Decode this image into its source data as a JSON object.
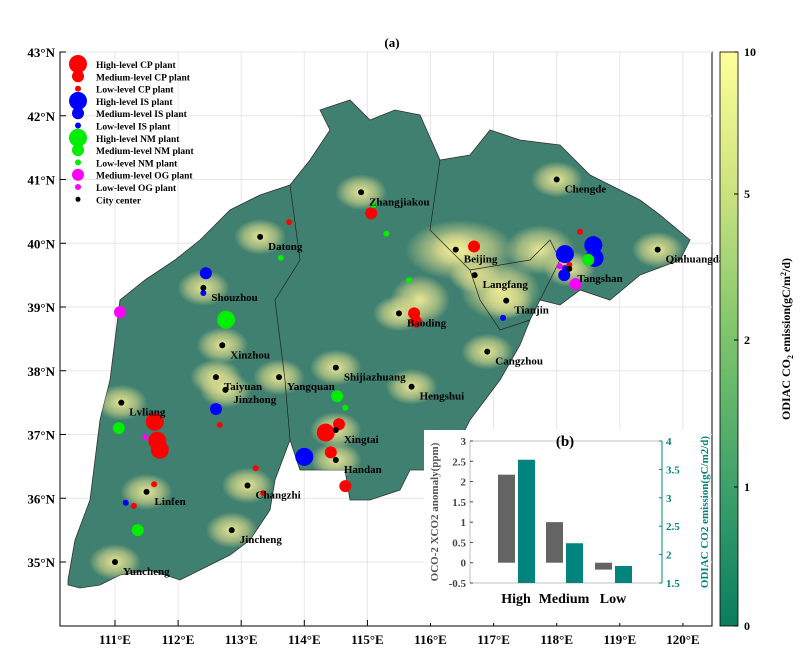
{
  "map": {
    "panel_label": "(a)",
    "lat_ticks": [
      "43°N",
      "42°N",
      "41°N",
      "40°N",
      "39°N",
      "38°N",
      "37°N",
      "36°N",
      "35°N"
    ],
    "lon_ticks": [
      "111°E",
      "112°E",
      "113°E",
      "114°E",
      "115°E",
      "116°E",
      "117°E",
      "118°E",
      "119°E",
      "120°E"
    ],
    "lat_values": [
      43,
      42,
      41,
      40,
      39,
      38,
      37,
      36,
      35
    ],
    "lon_values": [
      111,
      112,
      113,
      114,
      115,
      116,
      117,
      118,
      119,
      120
    ],
    "region_color": "#3f8070",
    "legend": [
      {
        "label": "High-level CP plant",
        "color": "#ff0000",
        "level": "high"
      },
      {
        "label": "Medium-level CP plant",
        "color": "#ff0000",
        "level": "medium"
      },
      {
        "label": "Low-level CP plant",
        "color": "#ff0000",
        "level": "low"
      },
      {
        "label": "High-level IS plant",
        "color": "#0000ff",
        "level": "high"
      },
      {
        "label": "Medium-level IS plant",
        "color": "#0000ff",
        "level": "medium"
      },
      {
        "label": "Low-level IS plant",
        "color": "#0000ff",
        "level": "low"
      },
      {
        "label": "High-level NM plant",
        "color": "#00ee00",
        "level": "high"
      },
      {
        "label": "Medium-level NM plant",
        "color": "#00ee00",
        "level": "medium"
      },
      {
        "label": "Low-level NM plant",
        "color": "#00ee00",
        "level": "low"
      },
      {
        "label": "Medium-level OG plant",
        "color": "#ff00ff",
        "level": "medium"
      },
      {
        "label": "Low-level OG plant",
        "color": "#ff00ff",
        "level": "low"
      },
      {
        "label": "City center",
        "color": "#000000",
        "level": "city"
      }
    ],
    "cities": [
      {
        "name": "Zhangjiakou",
        "lon": 114.9,
        "lat": 40.8
      },
      {
        "name": "Chengde",
        "lon": 118.0,
        "lat": 41.0
      },
      {
        "name": "Datong",
        "lon": 113.3,
        "lat": 40.1
      },
      {
        "name": "Beijing",
        "lon": 116.4,
        "lat": 39.9
      },
      {
        "name": "Qinhuangdao",
        "lon": 119.6,
        "lat": 39.9
      },
      {
        "name": "Langfang",
        "lon": 116.7,
        "lat": 39.5
      },
      {
        "name": "Tangshan",
        "lon": 118.2,
        "lat": 39.6
      },
      {
        "name": "Shouzhou",
        "lon": 112.4,
        "lat": 39.3
      },
      {
        "name": "Tianjin",
        "lon": 117.2,
        "lat": 39.1
      },
      {
        "name": "Baoding",
        "lon": 115.5,
        "lat": 38.9
      },
      {
        "name": "Xinzhou",
        "lon": 112.7,
        "lat": 38.4
      },
      {
        "name": "Cangzhou",
        "lon": 116.9,
        "lat": 38.3
      },
      {
        "name": "Shijiazhuang",
        "lon": 114.5,
        "lat": 38.05
      },
      {
        "name": "Taiyuan",
        "lon": 112.6,
        "lat": 37.9
      },
      {
        "name": "Yangquan",
        "lon": 113.6,
        "lat": 37.9
      },
      {
        "name": "Jinzhong",
        "lon": 112.75,
        "lat": 37.7
      },
      {
        "name": "Hengshui",
        "lon": 115.7,
        "lat": 37.75
      },
      {
        "name": "Lvliang",
        "lon": 111.1,
        "lat": 37.5
      },
      {
        "name": "Xingtai",
        "lon": 114.5,
        "lat": 37.07
      },
      {
        "name": "Handan",
        "lon": 114.5,
        "lat": 36.6
      },
      {
        "name": "Changzhi",
        "lon": 113.1,
        "lat": 36.2
      },
      {
        "name": "Linfen",
        "lon": 111.5,
        "lat": 36.1
      },
      {
        "name": "Jincheng",
        "lon": 112.85,
        "lat": 35.5
      },
      {
        "name": "Yuncheng",
        "lon": 111.0,
        "lat": 35.0
      }
    ],
    "plants": [
      {
        "type": "CP",
        "level": "high",
        "lon": 111.63,
        "lat": 37.2
      },
      {
        "type": "CP",
        "level": "high",
        "lon": 111.71,
        "lat": 36.76
      },
      {
        "type": "CP",
        "level": "high",
        "lon": 111.67,
        "lat": 36.9
      },
      {
        "type": "CP",
        "level": "high",
        "lon": 114.34,
        "lat": 37.03
      },
      {
        "type": "CP",
        "level": "medium",
        "lon": 115.74,
        "lat": 38.9
      },
      {
        "type": "CP",
        "level": "medium",
        "lon": 115.77,
        "lat": 38.77
      },
      {
        "type": "CP",
        "level": "medium",
        "lon": 116.69,
        "lat": 39.95
      },
      {
        "type": "CP",
        "level": "medium",
        "lon": 115.06,
        "lat": 40.47
      },
      {
        "type": "CP",
        "level": "medium",
        "lon": 114.42,
        "lat": 36.72
      },
      {
        "type": "CP",
        "level": "medium",
        "lon": 114.65,
        "lat": 36.19
      },
      {
        "type": "CP",
        "level": "medium",
        "lon": 114.55,
        "lat": 37.16
      },
      {
        "type": "CP",
        "level": "low",
        "lon": 113.76,
        "lat": 40.33
      },
      {
        "type": "CP",
        "level": "low",
        "lon": 118.37,
        "lat": 40.18
      },
      {
        "type": "CP",
        "level": "low",
        "lon": 113.23,
        "lat": 36.47
      },
      {
        "type": "CP",
        "level": "low",
        "lon": 111.3,
        "lat": 35.88
      },
      {
        "type": "CP",
        "level": "low",
        "lon": 111.62,
        "lat": 36.22
      },
      {
        "type": "CP",
        "level": "low",
        "lon": 113.35,
        "lat": 36.08
      },
      {
        "type": "CP",
        "level": "low",
        "lon": 118.2,
        "lat": 39.66
      },
      {
        "type": "CP",
        "level": "low",
        "lon": 112.66,
        "lat": 37.15
      },
      {
        "type": "IS",
        "level": "high",
        "lon": 118.13,
        "lat": 39.83
      },
      {
        "type": "IS",
        "level": "high",
        "lon": 118.58,
        "lat": 39.97
      },
      {
        "type": "IS",
        "level": "high",
        "lon": 118.6,
        "lat": 39.77
      },
      {
        "type": "IS",
        "level": "high",
        "lon": 114.0,
        "lat": 36.65
      },
      {
        "type": "IS",
        "level": "medium",
        "lon": 112.44,
        "lat": 39.53
      },
      {
        "type": "IS",
        "level": "medium",
        "lon": 112.6,
        "lat": 37.4
      },
      {
        "type": "IS",
        "level": "medium",
        "lon": 118.12,
        "lat": 39.5
      },
      {
        "type": "IS",
        "level": "low",
        "lon": 112.4,
        "lat": 39.22
      },
      {
        "type": "IS",
        "level": "low",
        "lon": 111.17,
        "lat": 35.93
      },
      {
        "type": "IS",
        "level": "low",
        "lon": 117.15,
        "lat": 38.83
      },
      {
        "type": "IS",
        "level": "low",
        "lon": 118.13,
        "lat": 39.61
      },
      {
        "type": "NM",
        "level": "high",
        "lon": 112.76,
        "lat": 38.8
      },
      {
        "type": "NM",
        "level": "medium",
        "lon": 118.5,
        "lat": 39.74
      },
      {
        "type": "NM",
        "level": "medium",
        "lon": 114.52,
        "lat": 37.6
      },
      {
        "type": "NM",
        "level": "medium",
        "lon": 111.06,
        "lat": 37.1
      },
      {
        "type": "NM",
        "level": "medium",
        "lon": 111.36,
        "lat": 35.5
      },
      {
        "type": "NM",
        "level": "low",
        "lon": 115.3,
        "lat": 40.15
      },
      {
        "type": "NM",
        "level": "low",
        "lon": 113.63,
        "lat": 39.77
      },
      {
        "type": "NM",
        "level": "low",
        "lon": 115.66,
        "lat": 39.42
      },
      {
        "type": "NM",
        "level": "low",
        "lon": 114.65,
        "lat": 37.42
      },
      {
        "type": "NM",
        "level": "low",
        "lon": 115.1,
        "lat": 40.6
      },
      {
        "type": "OG",
        "level": "medium",
        "lon": 111.08,
        "lat": 38.92
      },
      {
        "type": "OG",
        "level": "medium",
        "lon": 118.3,
        "lat": 39.36
      },
      {
        "type": "OG",
        "level": "low",
        "lon": 111.48,
        "lat": 36.96
      },
      {
        "type": "OG",
        "level": "low",
        "lon": 118.05,
        "lat": 39.64
      }
    ],
    "type_colors": {
      "CP": "#ff0000",
      "IS": "#0000ff",
      "NM": "#00ee00",
      "OG": "#ff00ff"
    }
  },
  "colorbar": {
    "label": "ODIAC CO2 emission(gC/m2/d)",
    "ticks": [
      "10",
      "5",
      "2",
      "1",
      "0"
    ],
    "tick_values": [
      10,
      5,
      2,
      1,
      0
    ],
    "colors": [
      "#ffff99",
      "#c9e27e",
      "#7cc46b",
      "#3fa26b",
      "#0a7d5e"
    ]
  },
  "chart_data": {
    "type": "bar",
    "title": "(b)",
    "categories": [
      "High",
      "Medium",
      "Low"
    ],
    "series": [
      {
        "name": "OCO-2 XCO2 anomaly(ppm)",
        "axis": "left",
        "color": "#646464",
        "values": [
          2.17,
          1.0,
          -0.17
        ]
      },
      {
        "name": "ODIAC CO2 emission(gC/m2/d)",
        "axis": "right",
        "color": "#00847d",
        "values": [
          3.67,
          2.2,
          1.8
        ]
      }
    ],
    "ylabel": "OCO-2 XCO2 anomaly(ppm)",
    "y2label": "ODIAC CO2 emission(gC/m2/d)",
    "ylim": [
      -0.5,
      3
    ],
    "y2lim": [
      1.5,
      4
    ],
    "yticks": [
      "3",
      "2.5",
      "2",
      "1.5",
      "1",
      "0.5",
      "0",
      "-0.5"
    ],
    "ytick_values": [
      3,
      2.5,
      2,
      1.5,
      1,
      0.5,
      0,
      -0.5
    ],
    "y2ticks": [
      "4",
      "3.5",
      "3",
      "2.5",
      "2",
      "1.5"
    ],
    "y2tick_values": [
      4,
      3.5,
      3,
      2.5,
      2,
      1.5
    ],
    "grid": true
  }
}
